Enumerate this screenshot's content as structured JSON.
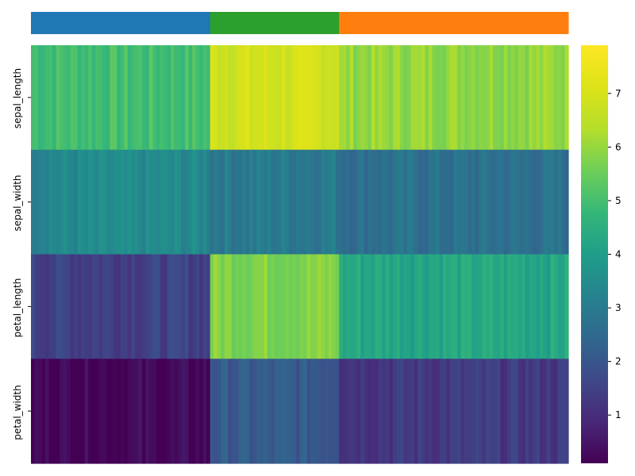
{
  "chart_data": {
    "type": "heatmap",
    "rows": [
      "sepal_length",
      "sepal_width",
      "petal_length",
      "petal_width"
    ],
    "columns_count": 150,
    "column_groups_top_to_color": [
      {
        "color": "#1f77b4",
        "columns": 50
      },
      {
        "color": "#2ca02c",
        "columns": 36
      },
      {
        "color": "#ff7f0e",
        "columns": 64
      }
    ],
    "row_color_bar": "top",
    "colorbar": {
      "colormap": "viridis",
      "min": 0.1,
      "max": 7.9,
      "ticks": [
        1,
        2,
        3,
        4,
        5,
        6,
        7
      ]
    },
    "row_value_ranges": {
      "sepal_length": [
        4.3,
        7.9
      ],
      "sepal_width": [
        2.0,
        4.4
      ],
      "petal_length": [
        1.0,
        6.9
      ],
      "petal_width": [
        0.1,
        2.5
      ]
    },
    "xlabel": "",
    "ylabel": "",
    "title": ""
  }
}
